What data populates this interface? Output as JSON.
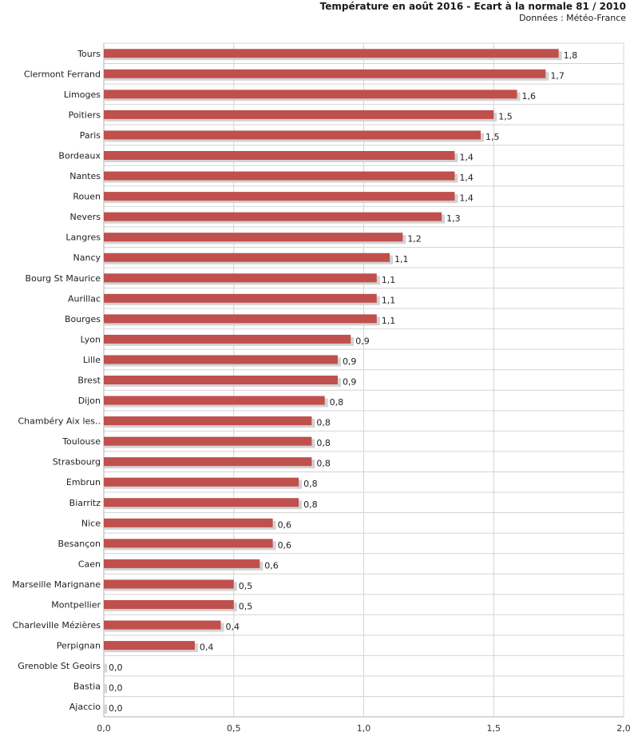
{
  "chart_data": {
    "type": "bar",
    "orientation": "horizontal",
    "title": "Température en août 2016 - Ecart à la normale 81 / 2010",
    "subtitle": "Données : Météo-France",
    "categories": [
      "Tours",
      "Clermont Ferrand",
      "Limoges",
      "Poitiers",
      "Paris",
      "Bordeaux",
      "Nantes",
      "Rouen",
      "Nevers",
      "Langres",
      "Nancy",
      "Bourg St Maurice",
      "Aurillac",
      "Bourges",
      "Lyon",
      "Lille",
      "Brest",
      "Dijon",
      "Chambéry Aix les..",
      "Toulouse",
      "Strasbourg",
      "Embrun",
      "Biarritz",
      "Nice",
      "Besançon",
      "Caen",
      "Marseille Marignane",
      "Montpellier",
      "Charleville Mézières",
      "Perpignan",
      "Grenoble St Geoirs",
      "Bastia",
      "Ajaccio"
    ],
    "values": [
      1.75,
      1.7,
      1.59,
      1.5,
      1.45,
      1.35,
      1.35,
      1.35,
      1.3,
      1.15,
      1.1,
      1.05,
      1.05,
      1.05,
      0.95,
      0.9,
      0.9,
      0.85,
      0.8,
      0.8,
      0.8,
      0.75,
      0.75,
      0.65,
      0.65,
      0.6,
      0.5,
      0.5,
      0.45,
      0.35,
      0.0,
      0.0,
      0.0
    ],
    "data_labels": [
      "1,8",
      "1,7",
      "1,6",
      "1,5",
      "1,5",
      "1,4",
      "1,4",
      "1,4",
      "1,3",
      "1,2",
      "1,1",
      "1,1",
      "1,1",
      "1,1",
      "0,9",
      "0,9",
      "0,9",
      "0,8",
      "0,8",
      "0,8",
      "0,8",
      "0,8",
      "0,8",
      "0,6",
      "0,6",
      "0,6",
      "0,5",
      "0,5",
      "0,4",
      "0,4",
      "0,0",
      "0,0",
      "0,0"
    ],
    "xlim": [
      0,
      2.0
    ],
    "xticks": [
      0,
      0.5,
      1.0,
      1.5,
      2.0
    ],
    "xtick_labels": [
      "0,0",
      "0,5",
      "1,0",
      "1,5",
      "2,0"
    ],
    "grid": true,
    "bar_color": "#c0504d",
    "shadow_color": "#d3d3d3",
    "grid_color": "#d4d4d4"
  }
}
